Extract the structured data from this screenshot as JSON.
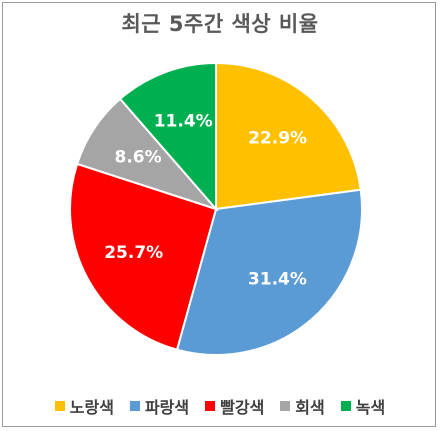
{
  "chart_data": {
    "type": "pie",
    "title": "최근 5주간 색상 비율",
    "categories": [
      "노랑색",
      "파랑색",
      "빨강색",
      "회색",
      "녹색"
    ],
    "values": [
      22.9,
      31.4,
      25.7,
      8.6,
      11.4
    ],
    "labels": [
      "22.9%",
      "31.4%",
      "25.7%",
      "8.6%",
      "11.4%"
    ],
    "colors": [
      "#FFC000",
      "#5B9BD5",
      "#FF0000",
      "#A5A5A5",
      "#00B050"
    ],
    "start_angle_deg": 0,
    "direction": "clockwise",
    "legend_position": "bottom"
  }
}
